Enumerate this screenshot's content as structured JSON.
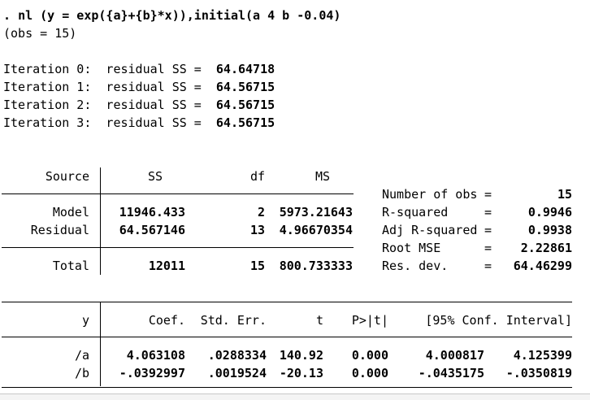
{
  "command": {
    "prompt": ". ",
    "text": "nl (y = exp({a}+{b}*x)),initial(a 4 b -0.04)",
    "obs_line": "(obs = 15)"
  },
  "iterations": [
    {
      "label": "Iteration 0:  residual SS =  ",
      "value": "64.64718"
    },
    {
      "label": "Iteration 1:  residual SS =  ",
      "value": "64.56715"
    },
    {
      "label": "Iteration 2:  residual SS =  ",
      "value": "64.56715"
    },
    {
      "label": "Iteration 3:  residual SS =  ",
      "value": "64.56715"
    }
  ],
  "anova": {
    "headers": {
      "source": "Source",
      "ss": "SS",
      "df": "df",
      "ms": "MS"
    },
    "rows": [
      {
        "source": "Model",
        "ss": "11946.433",
        "df": "2",
        "ms": "5973.21643"
      },
      {
        "source": "Residual",
        "ss": "64.567146",
        "df": "13",
        "ms": "4.96670354"
      }
    ],
    "total": {
      "source": "Total",
      "ss": "12011",
      "df": "15",
      "ms": "800.733333"
    }
  },
  "stats": [
    {
      "label": "Number of obs",
      "eq": "=",
      "value": "15"
    },
    {
      "label": "R-squared",
      "eq": "=",
      "value": "0.9946"
    },
    {
      "label": "Adj R-squared",
      "eq": "=",
      "value": "0.9938"
    },
    {
      "label": "Root MSE",
      "eq": "=",
      "value": "2.22861"
    },
    {
      "label": "Res. dev.",
      "eq": "=",
      "value": "64.46299"
    }
  ],
  "coef_table": {
    "headers": {
      "var": "y",
      "coef": "Coef.",
      "se": "Std. Err.",
      "t": "t",
      "p": "P>|t|",
      "ci": "[95% Conf. Interval]"
    },
    "rows": [
      {
        "var": "/a",
        "coef": "4.063108",
        "se": ".0288334",
        "t": "140.92",
        "p": "0.000",
        "lo": "4.000817",
        "hi": "4.125399"
      },
      {
        "var": "/b",
        "coef": "-.0392997",
        "se": ".0019524",
        "t": "-20.13",
        "p": "0.000",
        "lo": "-.0435175",
        "hi": "-.0350819"
      }
    ]
  }
}
